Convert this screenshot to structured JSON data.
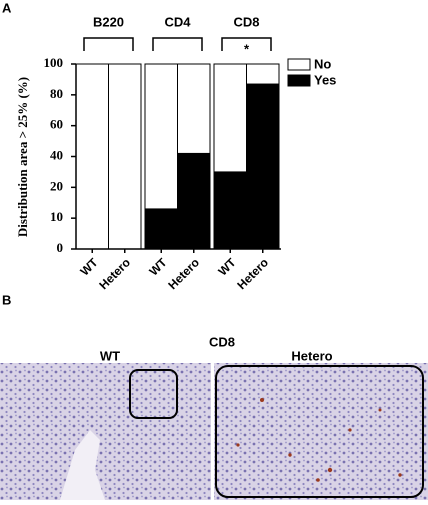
{
  "chart_data": {
    "type": "bar",
    "stacked": true,
    "panel_label": "A",
    "ylabel": "Distribution area > 25% (%)",
    "groups": [
      "B220",
      "CD4",
      "CD8"
    ],
    "categories": [
      "WT",
      "Hetero",
      "WT",
      "Hetero",
      "WT",
      "Hetero"
    ],
    "annotation": "*",
    "series": [
      {
        "name": "Yes",
        "color": "#000000",
        "values": [
          0,
          0,
          13,
          42,
          30,
          87
        ]
      },
      {
        "name": "No",
        "color": "#ffffff",
        "values": [
          100,
          100,
          87,
          58,
          70,
          13
        ]
      }
    ],
    "ylim": [
      0,
      100
    ],
    "yticks": [
      100,
      80,
      60,
      40,
      20,
      10,
      0
    ],
    "legend": "right"
  },
  "panel_b": {
    "panel_label": "B",
    "title": "CD8",
    "left_label": "WT",
    "right_label": "Hetero"
  }
}
